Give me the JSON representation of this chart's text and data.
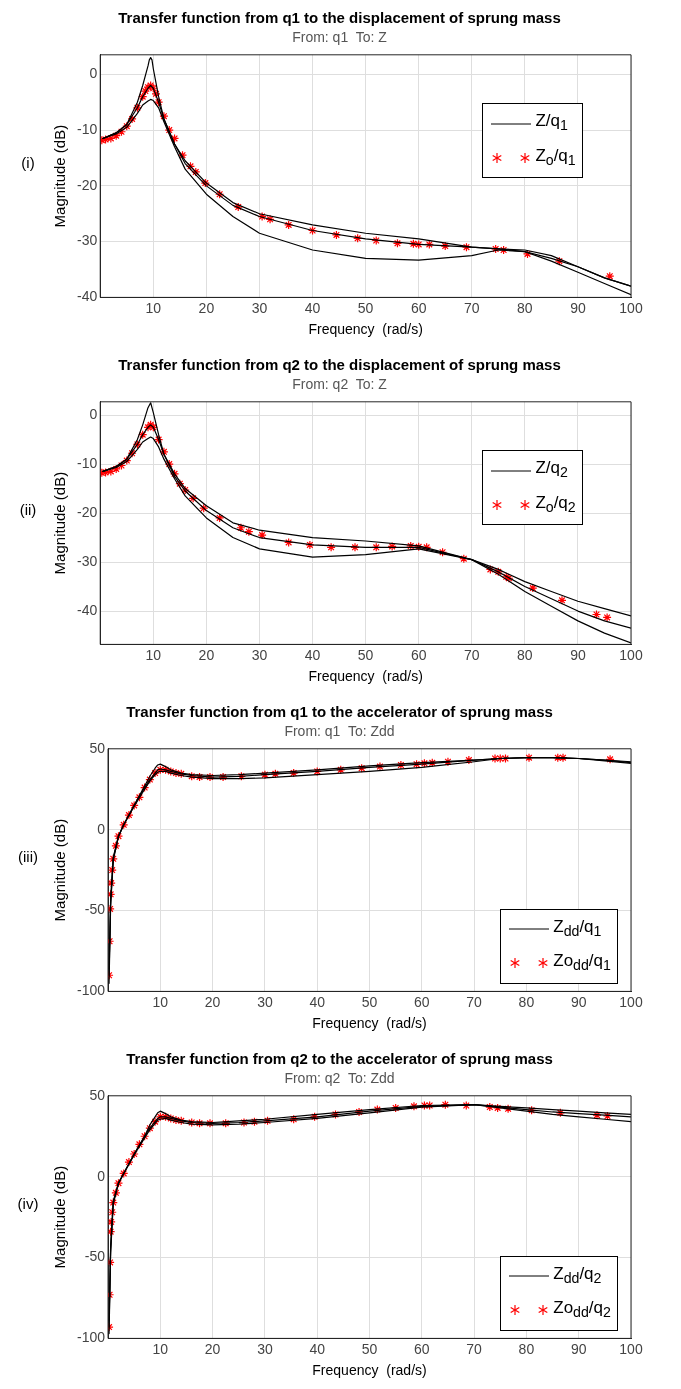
{
  "chart_data": [
    {
      "type": "line",
      "title": "Transfer function from q1 to the displacement of sprung mass",
      "subtitle": "From: q1  To: Z",
      "xlabel": "Frequency  (rad/s)",
      "ylabel": "Magnitude (dB)",
      "annotations": [
        "(i)"
      ],
      "xlim": [
        0,
        100
      ],
      "xticks": [
        10,
        20,
        30,
        40,
        50,
        60,
        70,
        80,
        90,
        100
      ],
      "ylim": [
        -40,
        3.5
      ],
      "yticks": [
        -40,
        -30,
        -20,
        -10,
        0
      ],
      "grid": true,
      "legend": "top right",
      "x": [
        0.5,
        3,
        5,
        7,
        8,
        9,
        9.5,
        10,
        11,
        12,
        14,
        16,
        20,
        25,
        30,
        40,
        50,
        60,
        70,
        75,
        80,
        85,
        90,
        95,
        100
      ],
      "series": [
        {
          "name": "Z/q$_{1}$",
          "color": "#000000",
          "x": [
            0.5,
            3,
            5,
            7,
            8,
            9,
            9.25,
            9.5,
            9.75,
            10,
            11,
            12,
            14,
            16,
            20,
            25,
            30,
            40,
            50,
            60,
            70,
            75,
            80,
            85,
            90,
            95,
            100
          ],
          "values": [
            -11.5,
            -10.5,
            -9,
            -5,
            -2,
            1.5,
            2.6,
            3,
            2.6,
            1,
            -4,
            -8,
            -12.5,
            -15.5,
            -19.5,
            -23,
            -25,
            -27,
            -28.5,
            -29.5,
            -31,
            -31.3,
            -31.5,
            -32.5,
            -34.5,
            -36.5,
            -38
          ]
        },
        {
          "color": "#000000",
          "values": [
            -11.5,
            -10.5,
            -9,
            -6,
            -4,
            -2.5,
            -2,
            -2.5,
            -5,
            -8,
            -12.5,
            -16,
            -20,
            -23.5,
            -25.5,
            -28,
            -29.5,
            -30.5,
            -31,
            -31.3,
            -31.8,
            -33,
            -34.5,
            -36.5,
            -38
          ]
        },
        {
          "color": "#000000",
          "values": [
            -11.5,
            -10.7,
            -9.5,
            -7,
            -5.5,
            -4.8,
            -4.5,
            -4.7,
            -6,
            -8.5,
            -13,
            -17,
            -21.5,
            -25.5,
            -28.5,
            -31.5,
            -33,
            -33.3,
            -32.5,
            -31.5,
            -31.8,
            -33.5,
            -35.5,
            -37.5,
            -39.5
          ]
        },
        {
          "name": "Z$_{o}$/q$_{1}$",
          "type": "scatter",
          "marker": "cross",
          "color": "#ff0000",
          "x": [
            0.3,
            1,
            2,
            3,
            4,
            5,
            6,
            7,
            8,
            8.5,
            9,
            9.5,
            10,
            10.5,
            11,
            12,
            13,
            14,
            15.5,
            17,
            18,
            19.8,
            22.5,
            26,
            30.5,
            32,
            35.5,
            40,
            44.5,
            48.5,
            52,
            56,
            59,
            60,
            62,
            65,
            69,
            74.5,
            76,
            80.5,
            86.5,
            96
          ],
          "values": [
            -11.8,
            -11.7,
            -11.5,
            -11,
            -10.3,
            -9.3,
            -8,
            -6,
            -4,
            -3,
            -2.3,
            -2,
            -2.5,
            -3.5,
            -5,
            -7.5,
            -10,
            -11.5,
            -14.5,
            -16.5,
            -17.5,
            -19.5,
            -21.5,
            -23.8,
            -25.5,
            -26,
            -27,
            -28,
            -28.8,
            -29.4,
            -29.8,
            -30.3,
            -30.4,
            -30.5,
            -30.5,
            -30.8,
            -31,
            -31.3,
            -31.5,
            -32.2,
            -33.5,
            -36.2
          ]
        }
      ]
    },
    {
      "type": "line",
      "title": "Transfer function from q2 to the displacement of sprung mass",
      "subtitle": "From: q2  To: Z",
      "xlabel": "Frequency  (rad/s)",
      "ylabel": "Magnitude (dB)",
      "annotations": [
        "(ii)"
      ],
      "xlim": [
        0,
        100
      ],
      "xticks": [
        10,
        20,
        30,
        40,
        50,
        60,
        70,
        80,
        90,
        100
      ],
      "ylim": [
        -46.8,
        2.7
      ],
      "yticks": [
        -40,
        -30,
        -20,
        -10,
        0
      ],
      "grid": true,
      "legend": "top right",
      "x": [
        0.5,
        3,
        5,
        7,
        8,
        9,
        9.5,
        10,
        11,
        12,
        14,
        16,
        20,
        25,
        30,
        40,
        50,
        60,
        70,
        75,
        80,
        85,
        90,
        95,
        100
      ],
      "series": [
        {
          "name": "Z/q$_{2}$",
          "color": "#000000",
          "values": [
            -11.5,
            -10.5,
            -9,
            -5,
            -2,
            1.5,
            2.5,
            0.5,
            -4,
            -8,
            -12,
            -15,
            -18.5,
            -22,
            -23.5,
            -25,
            -25.7,
            -26.7,
            -29.5,
            -31.5,
            -34,
            -36,
            -38,
            -39.5,
            -41
          ]
        },
        {
          "color": "#000000",
          "values": [
            -11.5,
            -10.5,
            -9,
            -6,
            -4,
            -2.5,
            -2,
            -2.5,
            -5,
            -8,
            -12.5,
            -15.5,
            -19.5,
            -23,
            -25,
            -26.5,
            -27,
            -27,
            -29.5,
            -32,
            -35,
            -37.5,
            -40,
            -42,
            -43.5
          ]
        },
        {
          "color": "#000000",
          "values": [
            -11.5,
            -10.7,
            -9.5,
            -7,
            -5.5,
            -4.8,
            -4.5,
            -4.8,
            -6.5,
            -9,
            -13,
            -16.5,
            -21,
            -25,
            -27.3,
            -29,
            -28.5,
            -27.3,
            -29.5,
            -32.5,
            -36,
            -39,
            -42,
            -44.5,
            -46.5
          ]
        },
        {
          "name": "Z$_{o}$/q$_{2}$",
          "type": "scatter",
          "marker": "cross",
          "color": "#ff0000",
          "x": [
            0.3,
            1,
            2,
            3,
            4,
            5,
            6,
            7,
            8,
            9,
            9.5,
            10,
            11,
            12,
            13,
            14,
            15,
            16,
            17.5,
            19.5,
            22.5,
            26.5,
            28,
            30.5,
            35.5,
            39.5,
            43.5,
            48,
            52,
            55,
            58.5,
            60,
            61.5,
            64.5,
            68.5,
            73.5,
            75,
            76.5,
            77,
            81.5,
            87,
            93.5,
            95.5
          ],
          "values": [
            -11.8,
            -11.7,
            -11.5,
            -11,
            -10.3,
            -9.3,
            -7.8,
            -6,
            -4,
            -2.5,
            -2,
            -2.5,
            -5,
            -7.5,
            -10,
            -12,
            -14,
            -15.3,
            -17,
            -19,
            -21,
            -23,
            -23.8,
            -24.5,
            -26,
            -26.5,
            -27,
            -27,
            -27,
            -26.8,
            -26.7,
            -26.9,
            -27,
            -28,
            -29.3,
            -31.5,
            -32,
            -33,
            -33.3,
            -35.3,
            -37.8,
            -40.7,
            -41.3
          ]
        }
      ]
    },
    {
      "type": "line",
      "title": "Transfer function from q1 to the accelerator of sprung mass",
      "subtitle": "From: q1  To: Zdd",
      "xlabel": "Frequency  (rad/s)",
      "ylabel": "Magnitude (dB)",
      "annotations": [
        "(iii)"
      ],
      "xlim": [
        0,
        100
      ],
      "xticks": [
        10,
        20,
        30,
        40,
        50,
        60,
        70,
        80,
        90,
        100
      ],
      "ylim": [
        -100,
        50
      ],
      "yticks": [
        -100,
        -50,
        0,
        50
      ],
      "grid": true,
      "legend": "bottom right",
      "x": [
        0.2,
        0.5,
        1,
        2,
        3,
        5,
        7,
        8,
        9,
        9.5,
        10,
        11,
        12,
        14,
        16,
        20,
        25,
        30,
        40,
        50,
        60,
        70,
        75,
        80,
        85,
        90,
        95,
        100
      ],
      "series": [
        {
          "name": "Z$_{dd}$/q$_{1}$",
          "color": "#000000",
          "values": [
            -86,
            -43,
            -17,
            -4,
            3,
            15,
            27,
            33,
            38,
            40,
            40.5,
            39,
            37,
            35,
            34,
            33.5,
            34,
            35,
            37,
            39.5,
            41.5,
            43,
            44,
            44.5,
            44.5,
            44,
            43,
            42
          ]
        },
        {
          "color": "#000000",
          "values": [
            -90,
            -45,
            -18,
            -4,
            3,
            15,
            26,
            31,
            35,
            37,
            37.5,
            37,
            36,
            34.5,
            33.5,
            32.5,
            33,
            34,
            36,
            38.5,
            40.5,
            43,
            44,
            44.5,
            44.5,
            44,
            43,
            41.5
          ]
        },
        {
          "color": "#000000",
          "values": [
            -95,
            -47,
            -19,
            -4,
            3,
            14.5,
            25,
            30,
            34,
            35.5,
            36,
            36,
            35,
            33.5,
            32.5,
            31.5,
            31.5,
            32,
            34,
            36,
            38.5,
            42,
            44,
            44.5,
            44.5,
            44,
            42.5,
            41
          ]
        },
        {
          "name": "Zo$_{dd}$/q$_{1}$",
          "type": "scatter",
          "marker": "cross",
          "color": "#ff0000",
          "x": [
            0.2,
            0.3,
            0.4,
            0.5,
            0.6,
            0.8,
            1,
            1.5,
            2,
            3,
            4,
            5,
            6,
            7,
            8,
            9,
            10,
            11,
            12,
            13,
            14,
            16,
            17.5,
            19.5,
            22,
            25.5,
            30,
            32,
            35.5,
            40,
            44.5,
            48.5,
            52,
            56,
            59,
            60.5,
            62,
            65,
            69,
            74,
            75,
            76,
            80.5,
            86,
            87,
            96
          ],
          "values": [
            -90,
            -69,
            -49,
            -40,
            -33,
            -25,
            -18,
            -10,
            -4,
            3,
            9,
            15,
            20,
            26,
            31,
            35,
            37,
            37,
            36,
            35,
            34.5,
            33,
            32.5,
            32.5,
            32.5,
            33,
            34,
            34.5,
            35,
            36,
            37,
            38,
            39,
            40,
            40.5,
            41,
            41.3,
            42,
            43,
            44,
            44,
            44,
            44.5,
            44.5,
            44.5,
            43.5
          ]
        }
      ]
    },
    {
      "type": "line",
      "title": "Transfer function from q2 to the accelerator of sprung mass",
      "subtitle": "From: q2  To: Zdd",
      "xlabel": "Frequency  (rad/s)",
      "ylabel": "Magnitude (dB)",
      "annotations": [
        "(iv)"
      ],
      "xlim": [
        0,
        100
      ],
      "xticks": [
        10,
        20,
        30,
        40,
        50,
        60,
        70,
        80,
        90,
        100
      ],
      "ylim": [
        -100,
        50
      ],
      "yticks": [
        -100,
        -50,
        0,
        50
      ],
      "grid": true,
      "legend": "bottom right",
      "x": [
        0.2,
        0.5,
        1,
        2,
        3,
        5,
        7,
        8,
        9,
        9.5,
        10,
        11,
        12,
        14,
        16,
        20,
        25,
        30,
        40,
        50,
        60,
        70,
        75,
        80,
        85,
        90,
        95,
        100
      ],
      "series": [
        {
          "name": "Z$_{dd}$/q$_{2}$",
          "color": "#000000",
          "values": [
            -89,
            -43,
            -15,
            -4,
            2,
            14,
            25,
            32,
            37,
            39.5,
            40.5,
            39,
            37,
            35,
            34,
            33.5,
            34.5,
            35.5,
            38.5,
            41.5,
            44,
            44.5,
            43.5,
            42.5,
            41.5,
            40.5,
            39.5,
            38.5
          ]
        },
        {
          "color": "#000000",
          "values": [
            -93,
            -45,
            -16,
            -4,
            2,
            14,
            25,
            30,
            34,
            36,
            37,
            37,
            36,
            34.5,
            33.5,
            33,
            33.5,
            34.5,
            37,
            40.5,
            43.5,
            44.5,
            43,
            41.5,
            40,
            39,
            38,
            37
          ]
        },
        {
          "color": "#000000",
          "values": [
            -97,
            -47,
            -17,
            -4,
            2,
            13.5,
            24,
            29,
            33,
            35,
            35.5,
            36,
            35,
            33.5,
            32.5,
            32,
            32.5,
            33.5,
            36,
            39.5,
            43,
            44.5,
            42.5,
            40.5,
            38.5,
            37,
            35.5,
            34
          ]
        },
        {
          "name": "Zo$_{dd}$/q$_{2}$",
          "type": "scatter",
          "marker": "cross",
          "color": "#ff0000",
          "x": [
            0.2,
            0.3,
            0.4,
            0.5,
            0.6,
            0.8,
            1,
            1.5,
            2,
            3,
            4,
            5,
            6,
            7,
            8,
            9,
            10,
            11,
            12,
            13,
            14,
            16,
            17.5,
            19.5,
            22.5,
            26,
            28,
            30.5,
            35.5,
            39.5,
            43.5,
            48,
            51.5,
            55,
            58.5,
            60.5,
            61.5,
            64.5,
            68.5,
            73,
            74.5,
            76.5,
            81,
            86.5,
            93.5,
            95.5
          ],
          "values": [
            -93,
            -73,
            -53,
            -34,
            -28,
            -22,
            -16,
            -10,
            -4,
            2,
            9,
            14,
            20,
            25,
            30,
            34,
            37,
            37,
            36,
            35,
            34.5,
            33.5,
            33,
            33,
            33,
            33.5,
            34,
            34.5,
            35.5,
            37,
            38.5,
            40,
            41.5,
            42.5,
            43.5,
            44,
            44,
            44.5,
            44,
            43,
            42.5,
            42,
            41,
            39.5,
            38,
            37.5
          ]
        }
      ]
    }
  ]
}
